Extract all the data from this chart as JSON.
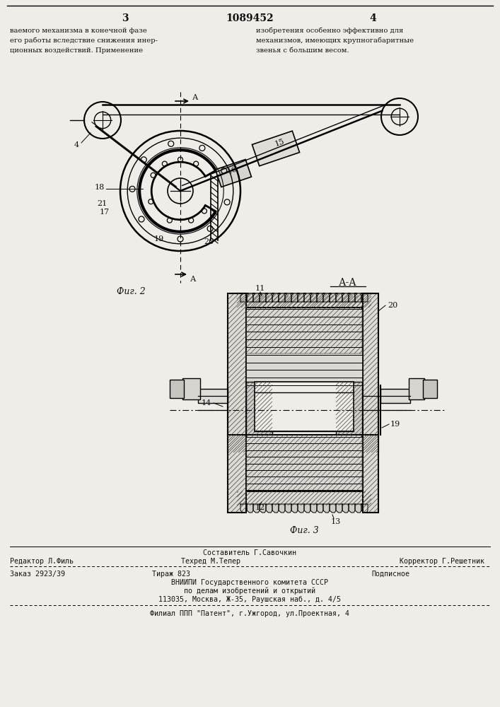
{
  "bg_color": "#f0ede8",
  "page_number_left": "3",
  "page_number_center": "1089452",
  "page_number_right": "4",
  "top_text_left": [
    "ваемого механизма в конечной фазе",
    "его работы вследствие снижения инер-",
    "ционных воздействий. Применение"
  ],
  "top_text_right": [
    "изобретения особенно эффективно для",
    "механизмов, имеющих крупногабаритные",
    "звенья с большим весом."
  ],
  "fig2_label": "Фиг. 2",
  "fig3_label": "Фиг. 3",
  "section_label": "А-А",
  "footer_line1_center": "Составитель Г.Савочкин",
  "footer_line2_left": "Редактор Л.Филь",
  "footer_line2_center": "Техред М.Тепер",
  "footer_line2_right": "Корректор Г.Решетник",
  "footer_line3_left": "Заказ 2923/39",
  "footer_line3_center": "Тираж 823",
  "footer_line3_right": "Подписное",
  "footer_line4": "ВНИИПИ Государственного комитета СССР",
  "footer_line5": "по делам изобретений и открытий",
  "footer_line6": "113035, Москва, Ж-35, Раушская наб., д. 4/5",
  "footer_line7": "Филиал ППП \"Патент\", г.Ужгород, ул.Проектная, 4",
  "lc": "#000000",
  "tc": "#111111"
}
